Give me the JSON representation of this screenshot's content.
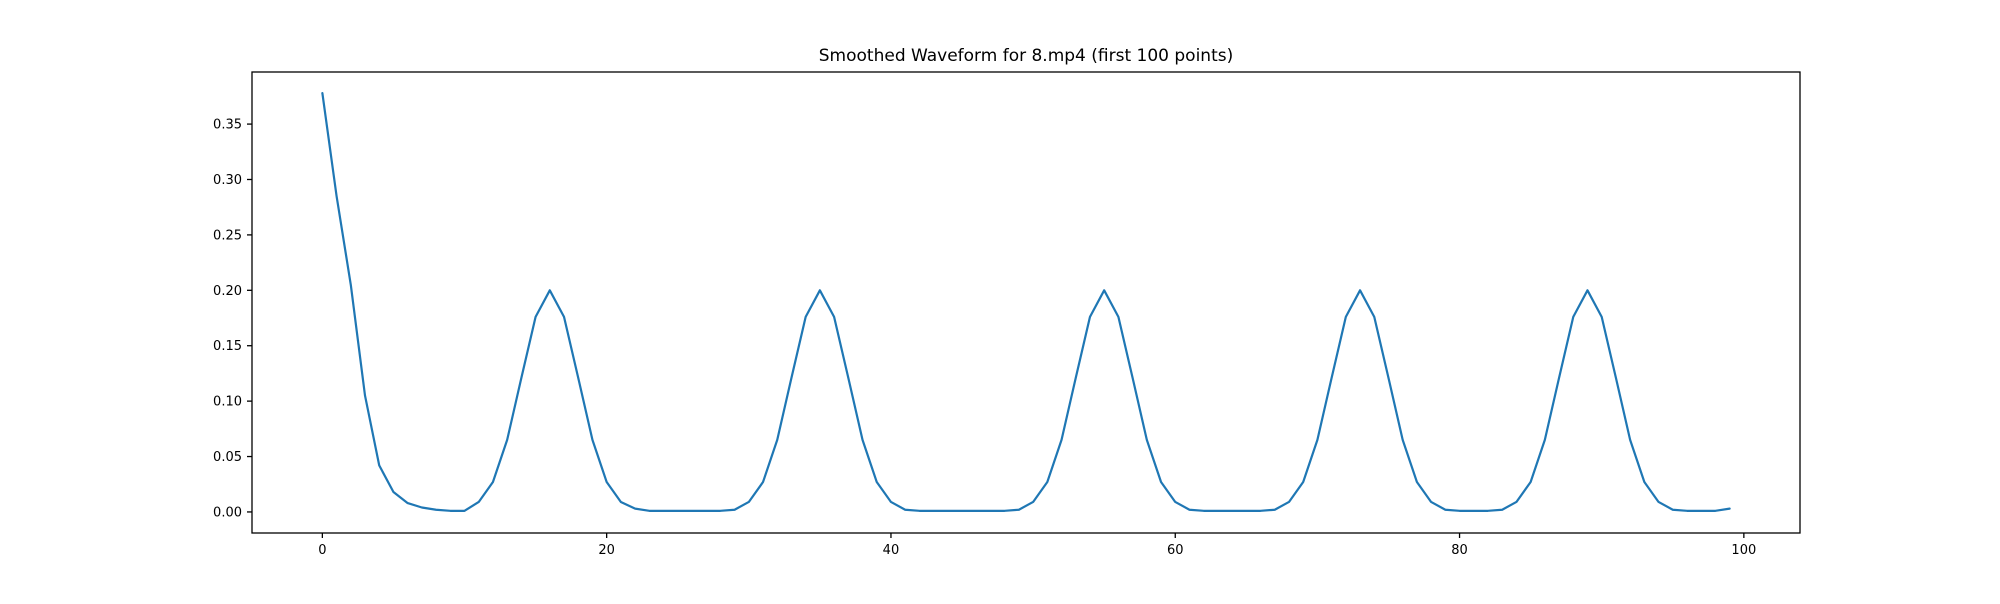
{
  "figure": {
    "background": "#ffffff"
  },
  "chart_data": {
    "type": "line",
    "title": "Smoothed Waveform for 8.mp4 (first 100 points)",
    "xlabel": "",
    "ylabel": "",
    "legend": null,
    "grid": false,
    "line_color": "#1f77b4",
    "axis_color": "#000000",
    "xlim": [
      -4.95,
      103.95
    ],
    "ylim": [
      -0.019,
      0.397
    ],
    "x_ticks": [
      0,
      20,
      40,
      60,
      80,
      100
    ],
    "x_tick_labels": [
      "0",
      "20",
      "40",
      "60",
      "80",
      "100"
    ],
    "y_ticks": [
      0.0,
      0.05,
      0.1,
      0.15,
      0.2,
      0.25,
      0.3,
      0.35
    ],
    "y_tick_labels": [
      "0.00",
      "0.05",
      "0.10",
      "0.15",
      "0.20",
      "0.25",
      "0.30",
      "0.35"
    ],
    "x": [
      0,
      1,
      2,
      3,
      4,
      5,
      6,
      7,
      8,
      9,
      10,
      11,
      12,
      13,
      14,
      15,
      16,
      17,
      18,
      19,
      20,
      21,
      22,
      23,
      24,
      25,
      26,
      27,
      28,
      29,
      30,
      31,
      32,
      33,
      34,
      35,
      36,
      37,
      38,
      39,
      40,
      41,
      42,
      43,
      44,
      45,
      46,
      47,
      48,
      49,
      50,
      51,
      52,
      53,
      54,
      55,
      56,
      57,
      58,
      59,
      60,
      61,
      62,
      63,
      64,
      65,
      66,
      67,
      68,
      69,
      70,
      71,
      72,
      73,
      74,
      75,
      76,
      77,
      78,
      79,
      80,
      81,
      82,
      83,
      84,
      85,
      86,
      87,
      88,
      89,
      90,
      91,
      92,
      93,
      94,
      95,
      96,
      97,
      98,
      99
    ],
    "values": [
      0.378,
      0.285,
      0.205,
      0.105,
      0.042,
      0.018,
      0.008,
      0.004,
      0.002,
      0.001,
      0.001,
      0.009,
      0.027,
      0.065,
      0.121,
      0.176,
      0.2,
      0.176,
      0.121,
      0.065,
      0.027,
      0.009,
      0.003,
      0.001,
      0.001,
      0.001,
      0.001,
      0.001,
      0.001,
      0.002,
      0.009,
      0.027,
      0.065,
      0.121,
      0.176,
      0.2,
      0.176,
      0.121,
      0.065,
      0.027,
      0.009,
      0.002,
      0.001,
      0.001,
      0.001,
      0.001,
      0.001,
      0.001,
      0.001,
      0.002,
      0.009,
      0.027,
      0.065,
      0.121,
      0.176,
      0.2,
      0.176,
      0.121,
      0.065,
      0.027,
      0.009,
      0.002,
      0.001,
      0.001,
      0.001,
      0.001,
      0.001,
      0.002,
      0.009,
      0.027,
      0.065,
      0.121,
      0.176,
      0.2,
      0.176,
      0.121,
      0.065,
      0.027,
      0.009,
      0.002,
      0.001,
      0.001,
      0.001,
      0.002,
      0.009,
      0.027,
      0.065,
      0.121,
      0.176,
      0.2,
      0.176,
      0.121,
      0.065,
      0.027,
      0.009,
      0.002,
      0.001,
      0.001,
      0.001,
      0.003
    ]
  }
}
